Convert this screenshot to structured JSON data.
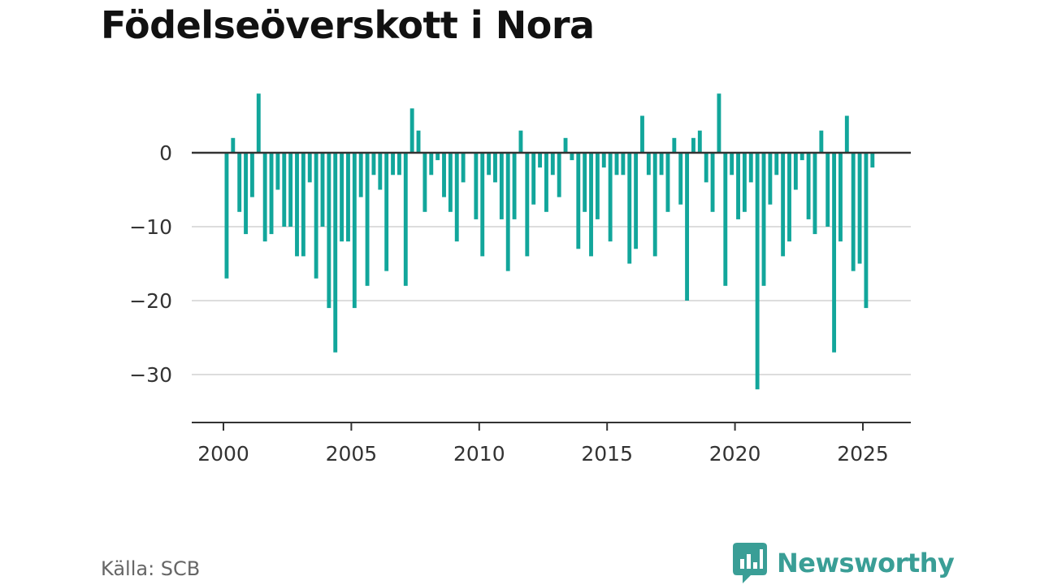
{
  "page": {
    "title": "Födelseöverskott i Nora",
    "source": "Källa: SCB",
    "brand": "Newsworthy",
    "brand_color": "#3a9e96",
    "bar_color": "#12a69b",
    "brand_icon": "bar-chart-speech-bubble-icon"
  },
  "chart_data": {
    "type": "bar",
    "title": "Födelseöverskott i Nora",
    "xlabel": "",
    "ylabel": "",
    "xlim": [
      1999.6,
      2026.8
    ],
    "ylim": [
      -36,
      8
    ],
    "x_ticks": [
      2000,
      2005,
      2010,
      2015,
      2020,
      2025
    ],
    "y_ticks": [
      0,
      -10,
      -20,
      -30
    ],
    "x_tick_labels": [
      "2000",
      "2005",
      "2010",
      "2015",
      "2020",
      "2025"
    ],
    "y_tick_labels": [
      "0",
      "−10",
      "−20",
      "−30"
    ],
    "grid": "horizontal",
    "legend": "none",
    "x_start": 2000.125,
    "x_step": 0.25,
    "values": [
      -17,
      2,
      -8,
      -11,
      -6,
      8,
      -12,
      -11,
      -5,
      -10,
      -10,
      -14,
      -14,
      -4,
      -17,
      -10,
      -21,
      -27,
      -12,
      -12,
      -21,
      -6,
      -18,
      -3,
      -5,
      -16,
      -3,
      -3,
      -18,
      6,
      3,
      -8,
      -3,
      -1,
      -6,
      -8,
      -12,
      -4,
      0,
      -9,
      -14,
      -3,
      -4,
      -9,
      -16,
      -9,
      3,
      -14,
      -7,
      -2,
      -8,
      -3,
      -6,
      2,
      -1,
      -13,
      -8,
      -14,
      -9,
      -2,
      -12,
      -3,
      -3,
      -15,
      -13,
      5,
      -3,
      -14,
      -3,
      -8,
      2,
      -7,
      -20,
      2,
      3,
      -4,
      -8,
      8,
      -18,
      -3,
      -9,
      -8,
      -4,
      -32,
      -18,
      -7,
      -3,
      -14,
      -12,
      -5,
      -1,
      -9,
      -11,
      3,
      -10,
      -27,
      -12,
      5,
      -16,
      -15,
      -21,
      -2
    ]
  }
}
